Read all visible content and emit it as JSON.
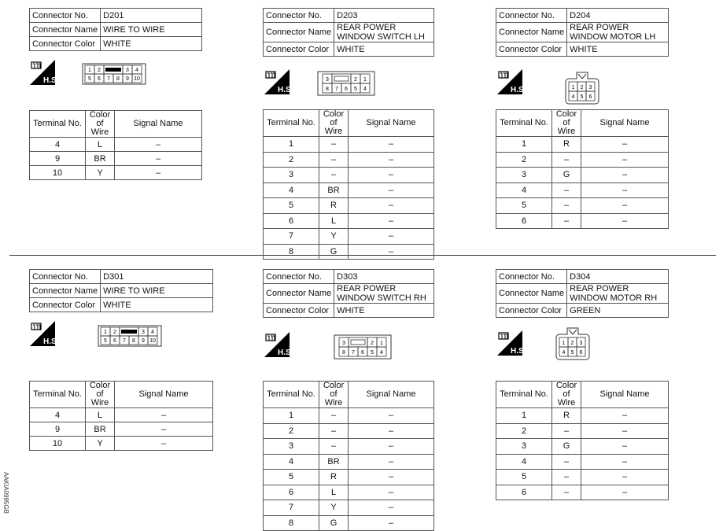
{
  "labels": {
    "connector_no": "Connector No.",
    "connector_name": "Connector Name",
    "connector_color": "Connector Color",
    "terminal_no": "Terminal No.",
    "color_of_wire": "Color of Wire",
    "signal_name": "Signal Name",
    "hs_icon_text": "H.S."
  },
  "side_code": "AAKIA0995GB",
  "connectors": [
    {
      "no": "D201",
      "name": "WIRE TO WIRE",
      "color": "WHITE",
      "face": "10pin",
      "face_icon": "connector-10pin-icon",
      "rows": [
        [
          "4",
          "L",
          "–"
        ],
        [
          "9",
          "BR",
          "–"
        ],
        [
          "10",
          "Y",
          "–"
        ]
      ]
    },
    {
      "no": "D203",
      "name": "REAR POWER WINDOW SWITCH LH",
      "color": "WHITE",
      "face": "8pin",
      "face_icon": "connector-8pin-icon",
      "rows": [
        [
          "1",
          "–",
          "–"
        ],
        [
          "2",
          "–",
          "–"
        ],
        [
          "3",
          "–",
          "–"
        ],
        [
          "4",
          "BR",
          "–"
        ],
        [
          "5",
          "R",
          "–"
        ],
        [
          "6",
          "L",
          "–"
        ],
        [
          "7",
          "Y",
          "–"
        ],
        [
          "8",
          "G",
          "–"
        ]
      ]
    },
    {
      "no": "D204",
      "name": "REAR POWER WINDOW MOTOR LH",
      "color": "WHITE",
      "face": "6pin",
      "face_icon": "connector-6pin-icon",
      "rows": [
        [
          "1",
          "R",
          "–"
        ],
        [
          "2",
          "–",
          "–"
        ],
        [
          "3",
          "G",
          "–"
        ],
        [
          "4",
          "–",
          "–"
        ],
        [
          "5",
          "–",
          "–"
        ],
        [
          "6",
          "–",
          "–"
        ]
      ]
    },
    {
      "no": "D301",
      "name": "WIRE TO WIRE",
      "color": "WHITE",
      "face": "10pin",
      "face_icon": "connector-10pin-icon",
      "rows": [
        [
          "4",
          "L",
          "–"
        ],
        [
          "9",
          "BR",
          "–"
        ],
        [
          "10",
          "Y",
          "–"
        ]
      ]
    },
    {
      "no": "D303",
      "name": "REAR POWER WINDOW SWITCH RH",
      "color": "WHITE",
      "face": "8pin",
      "face_icon": "connector-8pin-icon",
      "rows": [
        [
          "1",
          "–",
          "–"
        ],
        [
          "2",
          "–",
          "–"
        ],
        [
          "3",
          "–",
          "–"
        ],
        [
          "4",
          "BR",
          "–"
        ],
        [
          "5",
          "R",
          "–"
        ],
        [
          "6",
          "L",
          "–"
        ],
        [
          "7",
          "Y",
          "–"
        ],
        [
          "8",
          "G",
          "–"
        ]
      ]
    },
    {
      "no": "D304",
      "name": "REAR POWER WINDOW MOTOR RH",
      "color": "GREEN",
      "face": "6pin",
      "face_icon": "connector-6pin-icon",
      "rows": [
        [
          "1",
          "R",
          "–"
        ],
        [
          "2",
          "–",
          "–"
        ],
        [
          "3",
          "G",
          "–"
        ],
        [
          "4",
          "–",
          "–"
        ],
        [
          "5",
          "–",
          "–"
        ],
        [
          "6",
          "–",
          "–"
        ]
      ]
    }
  ]
}
